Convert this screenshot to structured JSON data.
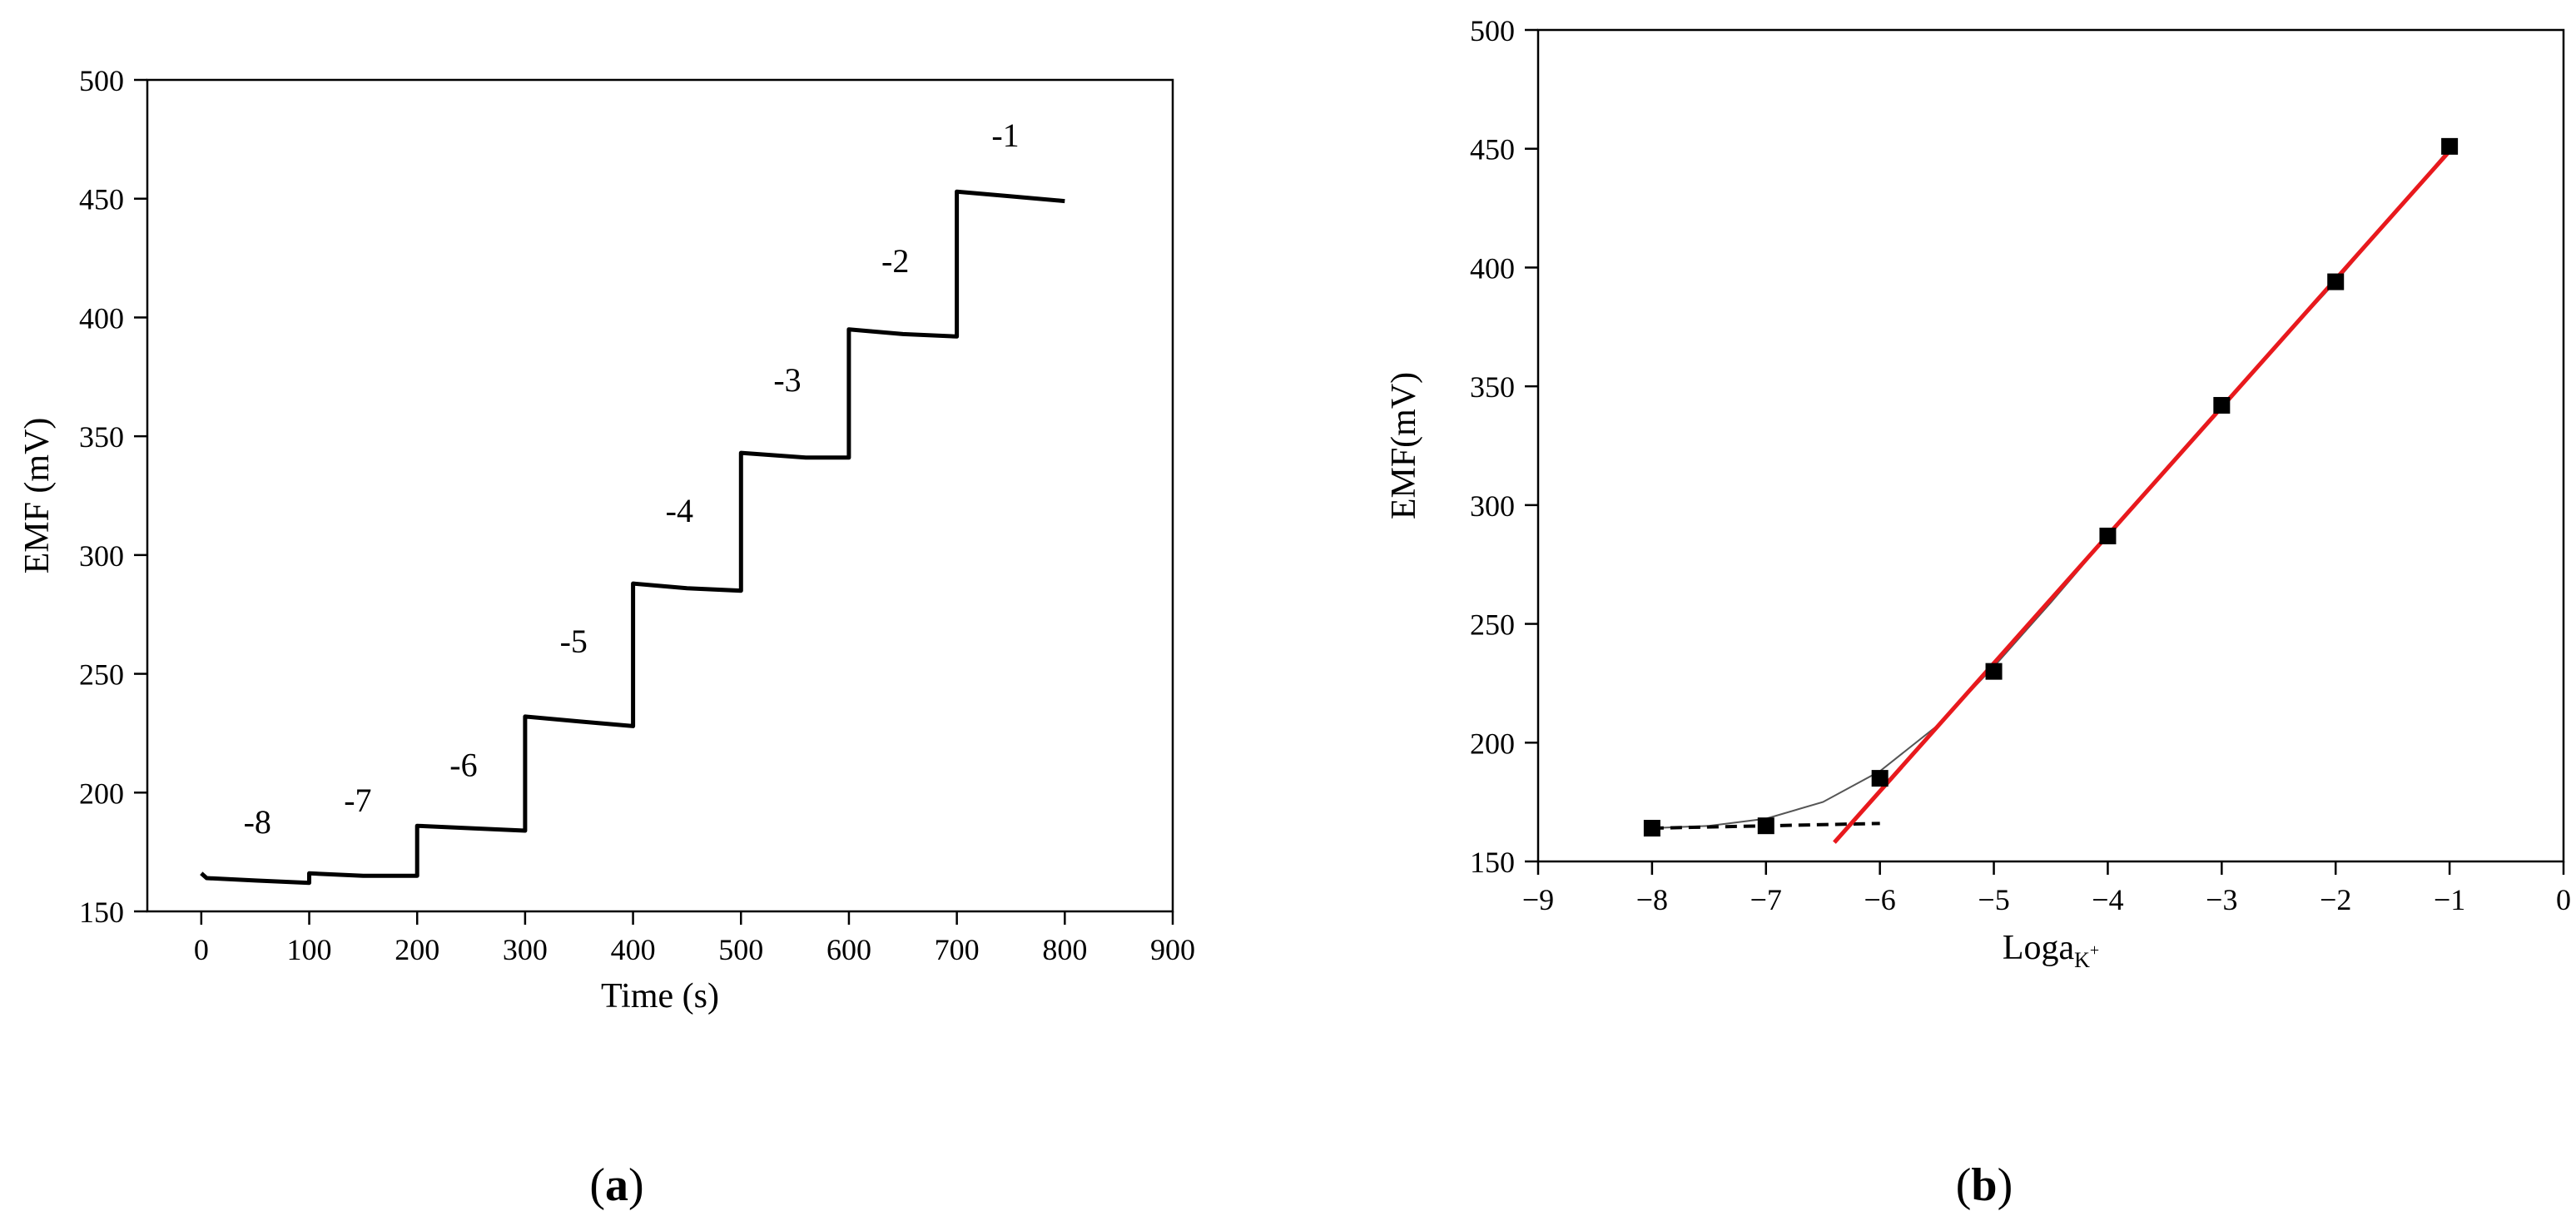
{
  "chart_data": [
    {
      "type": "line",
      "panel_label": "a",
      "xlabel": "Time (s)",
      "ylabel": "EMF (mV)",
      "xlim": [
        -50,
        900
      ],
      "ylim": [
        150,
        500
      ],
      "x_ticks": [
        0,
        100,
        200,
        300,
        400,
        500,
        600,
        700,
        800,
        900
      ],
      "y_ticks": [
        150,
        200,
        250,
        300,
        350,
        400,
        450,
        500
      ],
      "grid": false,
      "series": [
        {
          "color": "#000000",
          "points": [
            [
              0,
              166
            ],
            [
              5,
              164
            ],
            [
              50,
              163
            ],
            [
              100,
              162
            ],
            [
              100,
              166
            ],
            [
              150,
              165
            ],
            [
              200,
              165
            ],
            [
              200,
              186
            ],
            [
              250,
              185
            ],
            [
              300,
              184
            ],
            [
              300,
              232
            ],
            [
              350,
              230
            ],
            [
              400,
              228
            ],
            [
              400,
              288
            ],
            [
              450,
              286
            ],
            [
              500,
              285
            ],
            [
              500,
              343
            ],
            [
              560,
              341
            ],
            [
              600,
              341
            ],
            [
              600,
              395
            ],
            [
              650,
              393
            ],
            [
              700,
              392
            ],
            [
              700,
              453
            ],
            [
              750,
              451
            ],
            [
              800,
              449
            ]
          ]
        }
      ],
      "annotations": [
        {
          "text": "-8",
          "x": 52,
          "y": 183
        },
        {
          "text": "-7",
          "x": 145,
          "y": 192
        },
        {
          "text": "-6",
          "x": 243,
          "y": 207
        },
        {
          "text": "-5",
          "x": 345,
          "y": 259
        },
        {
          "text": "-4",
          "x": 443,
          "y": 314
        },
        {
          "text": "-3",
          "x": 543,
          "y": 369
        },
        {
          "text": "-2",
          "x": 643,
          "y": 419
        },
        {
          "text": "-1",
          "x": 745,
          "y": 472
        }
      ]
    },
    {
      "type": "scatter",
      "panel_label": "b",
      "xlabel": "Loga",
      "xlabel_subscript": "K",
      "xlabel_superscript": "+",
      "ylabel": "EMF(mV)",
      "xlim": [
        -9,
        0
      ],
      "ylim": [
        150,
        500
      ],
      "x_ticks": [
        -9,
        -8,
        -7,
        -6,
        -5,
        -4,
        -3,
        -2,
        -1,
        0
      ],
      "y_ticks": [
        150,
        200,
        250,
        300,
        350,
        400,
        450,
        500
      ],
      "grid": false,
      "series": [
        {
          "style": "square-markers",
          "color": "#000000",
          "x": [
            -8,
            -7,
            -6,
            -5,
            -4,
            -3,
            -2,
            -1
          ],
          "y": [
            164,
            165,
            185,
            230,
            287,
            342,
            394,
            451
          ]
        },
        {
          "style": "thin-curve",
          "color": "#555555",
          "x": [
            -8,
            -7.5,
            -7,
            -6.5,
            -6,
            -5.5,
            -5,
            -4.5,
            -4,
            -3.5,
            -3,
            -2.5,
            -2,
            -1.5,
            -1
          ],
          "y": [
            164,
            165,
            168,
            175,
            188,
            207,
            232,
            259,
            287,
            315,
            342,
            368,
            394,
            422,
            450
          ]
        },
        {
          "style": "dashed",
          "color": "#000000",
          "x": [
            -8,
            -6
          ],
          "y": [
            164,
            166
          ]
        },
        {
          "style": "linear-fit",
          "color": "#e8191d",
          "x": [
            -6.4,
            -1
          ],
          "y": [
            158,
            449
          ]
        }
      ]
    }
  ]
}
